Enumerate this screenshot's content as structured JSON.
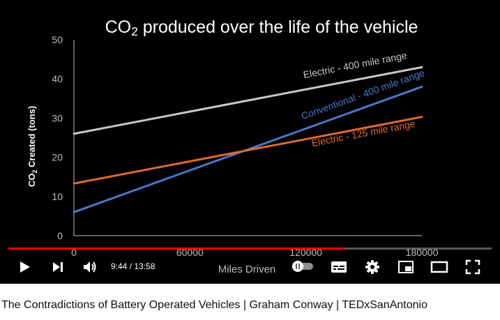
{
  "player": {
    "time_current": "9:44",
    "time_total": "13:58",
    "progress": 0.697,
    "icons": [
      "play-icon",
      "next-icon",
      "volume-icon",
      "autoplay-toggle-icon",
      "subtitles-icon",
      "settings-gear-icon",
      "miniplayer-icon",
      "theater-mode-icon",
      "fullscreen-icon"
    ]
  },
  "video": {
    "title": "The Contradictions of Battery Operated Vehicles | Graham Conway | TEDxSanAntonio"
  },
  "colors": {
    "progress_played": "#ff0000",
    "background": "#000000"
  },
  "chart_data": {
    "type": "line",
    "title_prefix": "CO",
    "title_subscript": "2",
    "title_suffix": " produced over the life of the vehicle",
    "xlabel": "Miles Driven",
    "ylabel_prefix": "CO",
    "ylabel_subscript": "2",
    "ylabel_suffix": " Created (tons)",
    "xlim": [
      0,
      180000
    ],
    "ylim": [
      0,
      50
    ],
    "x_ticks": [
      0,
      60000,
      120000,
      180000
    ],
    "x_tick_labels": [
      "0",
      "60000",
      "120000",
      "180000"
    ],
    "y_ticks": [
      0,
      10,
      20,
      30,
      40,
      50
    ],
    "y_tick_labels": [
      "0",
      "10",
      "20",
      "30",
      "40",
      "50"
    ],
    "grid": false,
    "series": [
      {
        "name": "Electric - 400 mile range",
        "color": "#c8c8c8",
        "x": [
          0,
          180000
        ],
        "y": [
          26,
          43
        ]
      },
      {
        "name": "Conventional - 400 mile range",
        "color": "#4a78c8",
        "x": [
          0,
          180000
        ],
        "y": [
          6,
          38
        ]
      },
      {
        "name": "Electric - 125 mile range",
        "color": "#e06a30",
        "x": [
          0,
          180000
        ],
        "y": [
          13.3,
          30.3
        ]
      }
    ]
  }
}
